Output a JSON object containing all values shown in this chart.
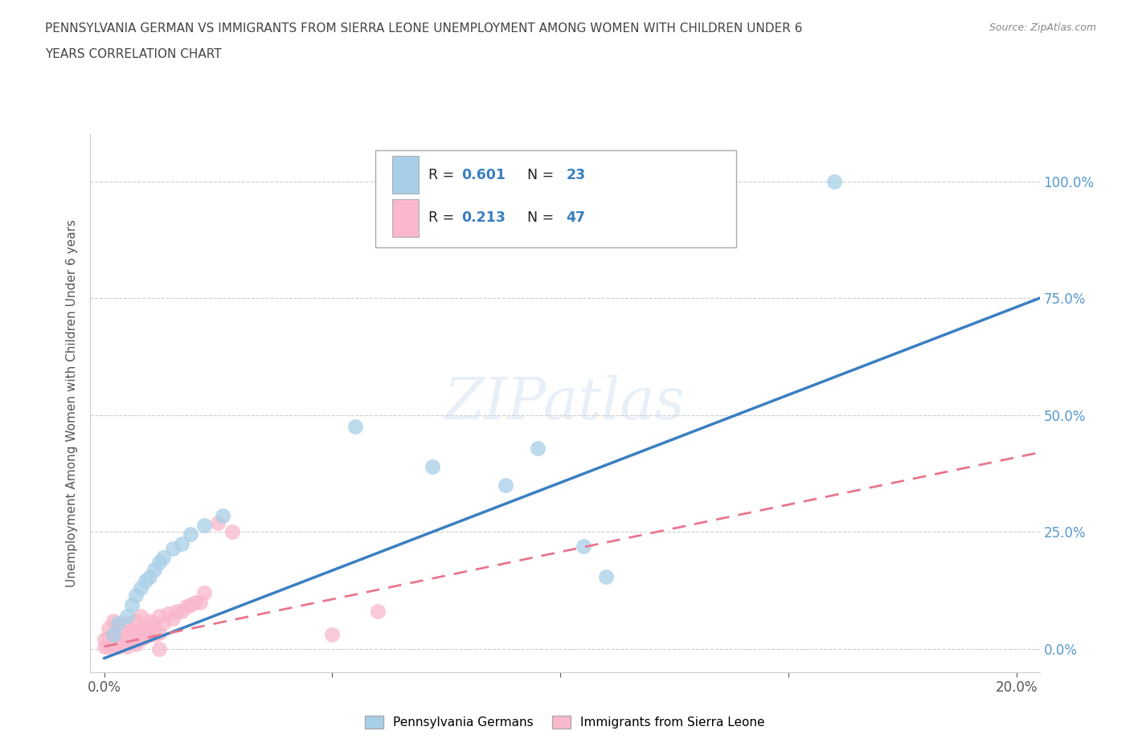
{
  "title_line1": "PENNSYLVANIA GERMAN VS IMMIGRANTS FROM SIERRA LEONE UNEMPLOYMENT AMONG WOMEN WITH CHILDREN UNDER 6",
  "title_line2": "YEARS CORRELATION CHART",
  "source": "Source: ZipAtlas.com",
  "ylabel": "Unemployment Among Women with Children Under 6 years",
  "xlabel_ticks": [
    "0.0%",
    "20.0%"
  ],
  "xlabel_vals": [
    0.0,
    0.2
  ],
  "ytick_vals": [
    0.0,
    0.25,
    0.5,
    0.75,
    1.0
  ],
  "right_ytick_labels": [
    "0.0%",
    "25.0%",
    "50.0%",
    "75.0%",
    "100.0%"
  ],
  "xlim": [
    -0.003,
    0.205
  ],
  "ylim": [
    -0.05,
    1.1
  ],
  "blue_R": 0.601,
  "blue_N": 23,
  "pink_R": 0.213,
  "pink_N": 47,
  "legend_label1": "Pennsylvania Germans",
  "legend_label2": "Immigrants from Sierra Leone",
  "blue_color": "#a8cfe8",
  "pink_color": "#f9b8cb",
  "blue_line_color": "#3a7fc1",
  "pink_line_color": "#e8768f",
  "watermark": "ZIPatlas",
  "blue_scatter_x": [
    0.002,
    0.003,
    0.005,
    0.006,
    0.007,
    0.008,
    0.009,
    0.01,
    0.011,
    0.012,
    0.013,
    0.015,
    0.017,
    0.019,
    0.022,
    0.026,
    0.055,
    0.072,
    0.088,
    0.095,
    0.105,
    0.11,
    0.16
  ],
  "blue_scatter_y": [
    0.03,
    0.055,
    0.07,
    0.095,
    0.115,
    0.13,
    0.145,
    0.155,
    0.17,
    0.185,
    0.195,
    0.215,
    0.225,
    0.245,
    0.265,
    0.285,
    0.475,
    0.39,
    0.35,
    0.43,
    0.22,
    0.155,
    1.0
  ],
  "pink_scatter_x": [
    0.0,
    0.0,
    0.001,
    0.001,
    0.001,
    0.002,
    0.002,
    0.002,
    0.003,
    0.003,
    0.003,
    0.004,
    0.004,
    0.005,
    0.005,
    0.005,
    0.006,
    0.006,
    0.007,
    0.007,
    0.007,
    0.008,
    0.008,
    0.008,
    0.009,
    0.009,
    0.01,
    0.01,
    0.011,
    0.011,
    0.012,
    0.012,
    0.013,
    0.014,
    0.015,
    0.016,
    0.017,
    0.018,
    0.019,
    0.02,
    0.021,
    0.022,
    0.025,
    0.028,
    0.05,
    0.06,
    0.012
  ],
  "pink_scatter_y": [
    0.005,
    0.02,
    0.005,
    0.025,
    0.045,
    0.01,
    0.03,
    0.06,
    0.005,
    0.02,
    0.05,
    0.015,
    0.04,
    0.005,
    0.025,
    0.055,
    0.02,
    0.04,
    0.01,
    0.035,
    0.06,
    0.02,
    0.045,
    0.07,
    0.025,
    0.05,
    0.03,
    0.06,
    0.03,
    0.055,
    0.035,
    0.07,
    0.055,
    0.075,
    0.065,
    0.08,
    0.08,
    0.09,
    0.095,
    0.1,
    0.1,
    0.12,
    0.27,
    0.25,
    0.03,
    0.08,
    0.0
  ],
  "blue_line_x0": 0.0,
  "blue_line_y0": -0.02,
  "blue_line_x1": 0.205,
  "blue_line_y1": 0.75,
  "pink_line_x0": 0.0,
  "pink_line_y0": 0.005,
  "pink_line_x1": 0.205,
  "pink_line_y1": 0.42
}
